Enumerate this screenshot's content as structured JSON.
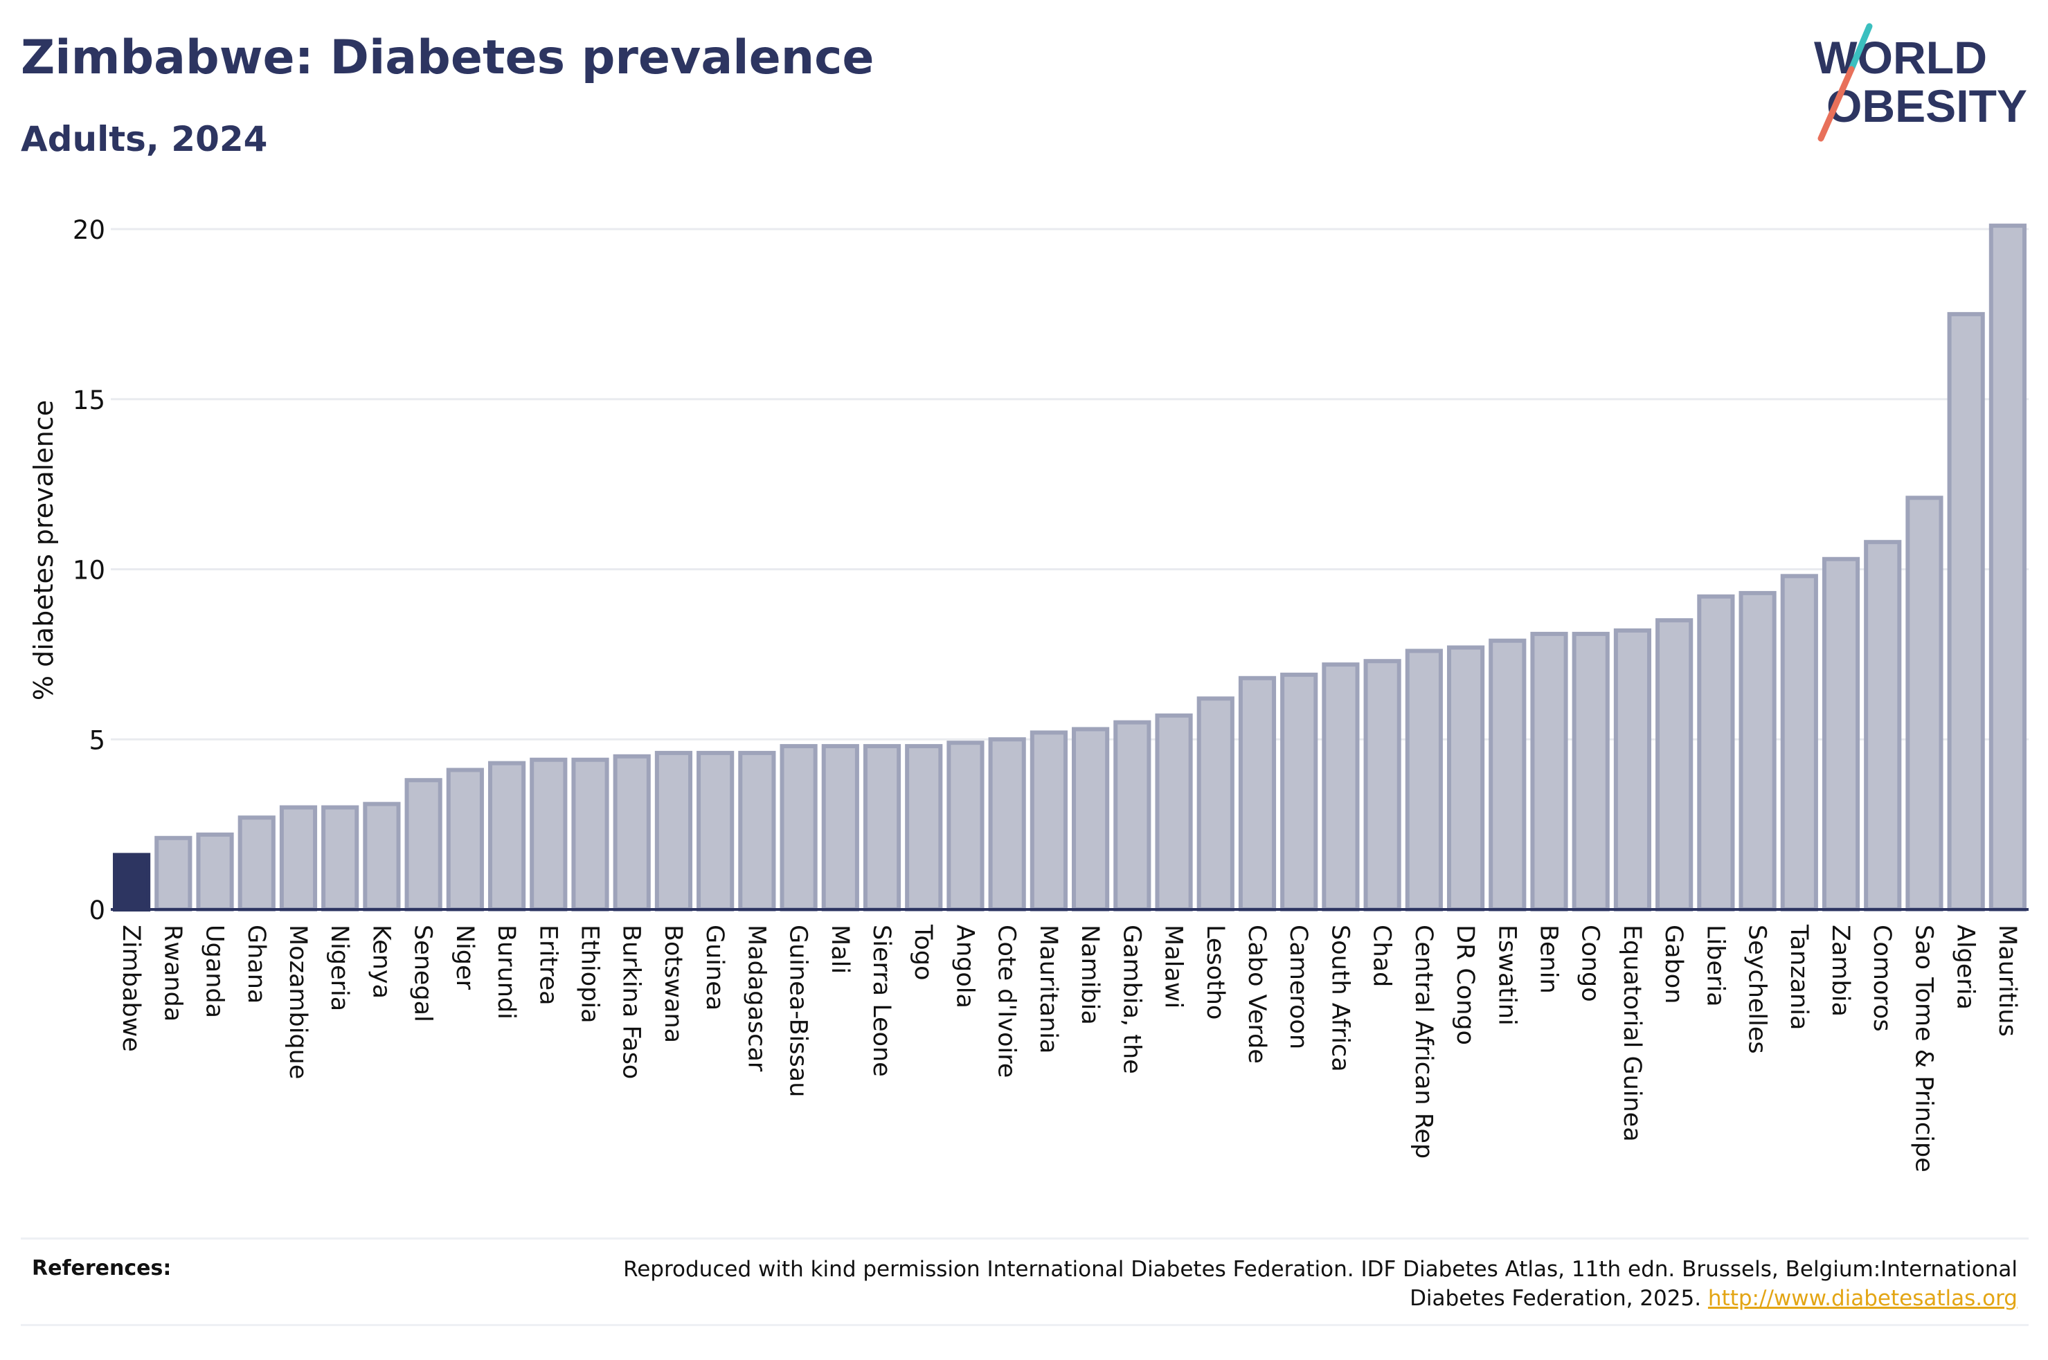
{
  "header": {
    "title": "Zimbabwe: Diabetes prevalence",
    "subtitle": "Adults, 2024"
  },
  "logo": {
    "line1": "WORLD",
    "line2": "OBESITY",
    "colors": {
      "text": "#2d3561",
      "slash_top": "#3bbfbf",
      "slash_bottom": "#e8705a"
    }
  },
  "chart_data": {
    "type": "bar",
    "title": "Zimbabwe: Diabetes prevalence",
    "subtitle": "Adults, 2024",
    "xlabel": "",
    "ylabel": "% diabetes prevalence",
    "ylim": [
      0,
      20.5
    ],
    "yticks": [
      0,
      5,
      10,
      15,
      20
    ],
    "grid": "horizontal",
    "highlight_category": "Zimbabwe",
    "colors": {
      "highlight": "#2d3561",
      "bar_fill": "#bdc0ce",
      "bar_stroke": "#9ea3ba",
      "grid": "#e9ebef",
      "axis": "#2d3561",
      "text": "#111111"
    },
    "categories": [
      "Zimbabwe",
      "Rwanda",
      "Uganda",
      "Ghana",
      "Mozambique",
      "Nigeria",
      "Kenya",
      "Senegal",
      "Niger",
      "Burundi",
      "Eritrea",
      "Ethiopia",
      "Burkina Faso",
      "Botswana",
      "Guinea",
      "Madagascar",
      "Guinea-Bissau",
      "Mali",
      "Sierra Leone",
      "Togo",
      "Angola",
      "Cote d'Ivoire",
      "Mauritania",
      "Namibia",
      "Gambia, the",
      "Malawi",
      "Lesotho",
      "Cabo Verde",
      "Cameroon",
      "South Africa",
      "Chad",
      "Central African Rep",
      "DR Congo",
      "Eswatini",
      "Benin",
      "Congo",
      "Equatorial Guinea",
      "Gabon",
      "Liberia",
      "Seychelles",
      "Tanzania",
      "Zambia",
      "Comoros",
      "Sao Tome & Principe",
      "Algeria",
      "Mauritius"
    ],
    "values": [
      1.6,
      2.1,
      2.2,
      2.7,
      3.0,
      3.0,
      3.1,
      3.8,
      4.1,
      4.3,
      4.4,
      4.4,
      4.5,
      4.6,
      4.6,
      4.6,
      4.8,
      4.8,
      4.8,
      4.8,
      4.9,
      5.0,
      5.2,
      5.3,
      5.5,
      5.7,
      6.2,
      6.8,
      6.9,
      7.2,
      7.3,
      7.6,
      7.7,
      7.9,
      8.1,
      8.1,
      8.2,
      8.5,
      9.2,
      9.3,
      9.8,
      10.3,
      10.8,
      12.1,
      17.5,
      20.1
    ]
  },
  "references": {
    "label": "References:",
    "text": "Reproduced with kind permission International Diabetes Federation. IDF Diabetes Atlas, 11th edn. Brussels, Belgium:International Diabetes Federation, 2025.",
    "link": "http://www.diabetesatlas.org"
  }
}
